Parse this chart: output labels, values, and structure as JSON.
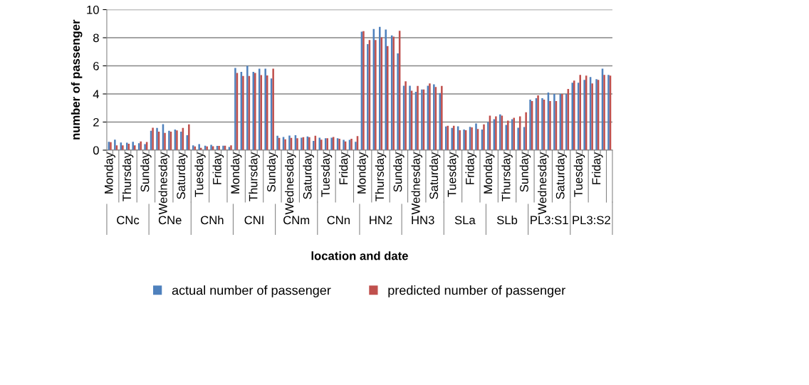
{
  "chart_data": {
    "type": "bar",
    "xlabel": "location and date",
    "ylabel": "number of passenger",
    "categories": [
      "Monday",
      null,
      null,
      "Thursday",
      null,
      null,
      "Sunday",
      null,
      null,
      "Wednesday",
      null,
      null,
      "Saturday",
      null,
      null,
      "Tuesday",
      null,
      null,
      "Friday",
      null,
      null,
      "Monday",
      null,
      null,
      "Thursday",
      null,
      null,
      "Sunday",
      null,
      null,
      "Wednesday",
      null,
      null,
      "Saturday",
      null,
      null,
      "Tuesday",
      null,
      null,
      "Friday",
      null,
      null,
      "Monday",
      null,
      null,
      "Thursday",
      null,
      null,
      "Sunday",
      null,
      null,
      "Wednesday",
      null,
      null,
      "Saturday",
      null,
      null,
      "Tuesday",
      null,
      null,
      "Friday",
      null,
      null,
      "Monday",
      null,
      null,
      "Thursday",
      null,
      null,
      "Sunday",
      null,
      null,
      "Wednesday",
      null,
      null,
      "Saturday",
      null,
      null,
      "Tuesday",
      null,
      null,
      "Friday",
      null,
      null
    ],
    "series": [
      {
        "name": "actual number of passenger",
        "color": "#4f81bd",
        "values": [
          0.6,
          0.75,
          0.55,
          0.53,
          0.6,
          0.49,
          0.43,
          1.38,
          1.58,
          1.85,
          1.38,
          1.47,
          1.32,
          1.06,
          0.34,
          0.43,
          0.32,
          0.38,
          0.3,
          0.32,
          0.23,
          5.85,
          5.57,
          6.0,
          5.57,
          5.8,
          5.8,
          5.1,
          1.02,
          0.94,
          1.04,
          1.06,
          0.89,
          0.98,
          0.66,
          0.89,
          0.85,
          0.89,
          0.85,
          0.74,
          0.74,
          0.6,
          8.43,
          7.55,
          8.62,
          8.77,
          8.58,
          8.17,
          6.89,
          4.58,
          4.58,
          4.15,
          4.32,
          4.58,
          4.68,
          4.06,
          1.68,
          1.58,
          1.7,
          1.47,
          1.66,
          1.9,
          1.47,
          2.0,
          2.2,
          2.55,
          1.8,
          2.2,
          1.6,
          1.65,
          3.6,
          3.7,
          3.7,
          4.1,
          4.0,
          4.0,
          4.0,
          4.8,
          4.8,
          5.0,
          5.2,
          5.05,
          5.8,
          5.35
        ]
      },
      {
        "name": "predicted number of passenger",
        "color": "#c0504d",
        "values": [
          0.57,
          0.34,
          0.34,
          0.45,
          0.34,
          0.62,
          0.58,
          1.6,
          1.32,
          1.23,
          1.32,
          1.4,
          1.58,
          1.83,
          0.26,
          0.17,
          0.26,
          0.28,
          0.3,
          0.32,
          0.34,
          5.5,
          5.28,
          5.28,
          5.5,
          5.34,
          5.32,
          5.8,
          0.87,
          0.77,
          0.87,
          0.85,
          0.92,
          0.92,
          1.02,
          0.75,
          0.85,
          0.94,
          0.81,
          0.62,
          0.81,
          1.0,
          8.47,
          7.83,
          7.83,
          8.02,
          7.4,
          8.08,
          8.49,
          4.9,
          4.23,
          4.57,
          4.32,
          4.75,
          4.49,
          4.57,
          1.74,
          1.74,
          1.42,
          1.42,
          1.62,
          1.51,
          1.83,
          2.45,
          2.4,
          2.45,
          2.1,
          2.3,
          2.4,
          2.7,
          3.5,
          3.9,
          3.6,
          3.5,
          3.5,
          4.0,
          4.35,
          4.95,
          5.35,
          5.3,
          4.75,
          5.0,
          5.35,
          5.3
        ]
      }
    ],
    "ylim": [
      0,
      10
    ],
    "yticks": [
      0,
      2,
      4,
      6,
      8,
      10
    ],
    "grid": "y",
    "legend": "bottom",
    "annotations": [
      "CNc",
      "CNe",
      "CNh",
      "CNI",
      "CNm",
      "CNn",
      "HN2",
      "HN3",
      "SLa",
      "SLb",
      "PL3:S1",
      "PL3:S2"
    ]
  }
}
